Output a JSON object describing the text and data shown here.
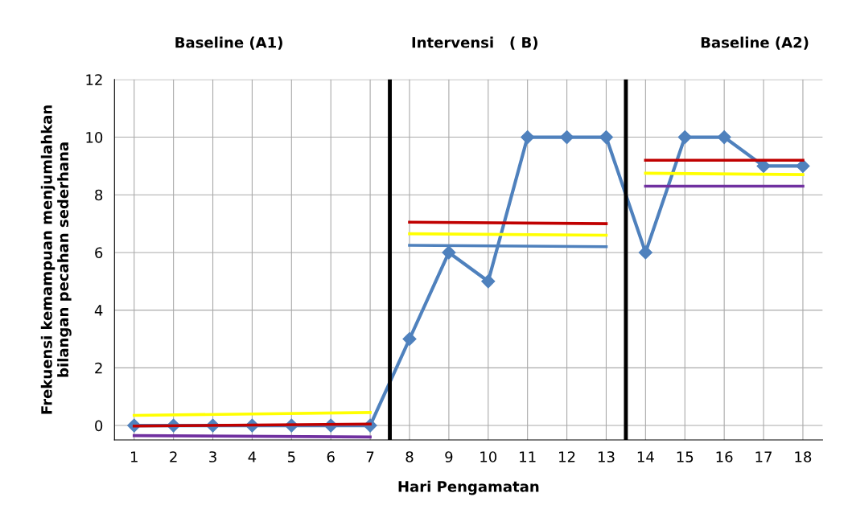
{
  "chart_data": {
    "type": "line",
    "xlabel": "Hari Pengamatan",
    "ylabel": "Frekuensi kemampuan menjumlahkan\nbilangan pecahan sederhana",
    "annotations": [
      "Baseline (A1)",
      "Intervensi   ( B)",
      "Baseline (A2)"
    ],
    "x": [
      1,
      2,
      3,
      4,
      5,
      6,
      7,
      8,
      9,
      10,
      11,
      12,
      13,
      14,
      15,
      16,
      17,
      18
    ],
    "series": [
      {
        "color": "#4f81bd",
        "marker": "diamond",
        "values": [
          0,
          0,
          0,
          0,
          0,
          0,
          0,
          3,
          6,
          5,
          10,
          10,
          10,
          6,
          10,
          10,
          9,
          9
        ]
      },
      {
        "color": "#ffff00",
        "marker": "none",
        "x": [
          1,
          7
        ],
        "values": [
          0.35,
          0.45
        ]
      },
      {
        "color": "#c00000",
        "marker": "none",
        "x": [
          1,
          7
        ],
        "values": [
          -0.02,
          0.05
        ]
      },
      {
        "color": "#7030a0",
        "marker": "none",
        "x": [
          1,
          7
        ],
        "values": [
          -0.35,
          -0.4
        ]
      },
      {
        "color": "#c00000",
        "marker": "none",
        "x": [
          8,
          13
        ],
        "values": [
          7.05,
          7.0
        ]
      },
      {
        "color": "#ffff00",
        "marker": "none",
        "x": [
          8,
          13
        ],
        "values": [
          6.65,
          6.6
        ]
      },
      {
        "color": "#4f81bd",
        "marker": "none",
        "x": [
          8,
          13
        ],
        "values": [
          6.25,
          6.2
        ]
      },
      {
        "color": "#c00000",
        "marker": "none",
        "x": [
          14,
          18
        ],
        "values": [
          9.2,
          9.2
        ]
      },
      {
        "color": "#ffff00",
        "marker": "none",
        "x": [
          14,
          18
        ],
        "values": [
          8.75,
          8.7
        ]
      },
      {
        "color": "#7030a0",
        "marker": "none",
        "x": [
          14,
          18
        ],
        "values": [
          8.3,
          8.3
        ]
      }
    ],
    "ref_lines": [
      {
        "axis": "x",
        "value": 7.5,
        "color": "#000000"
      },
      {
        "axis": "x",
        "value": 13.5,
        "color": "#000000"
      }
    ],
    "xlim": [
      0.5,
      18.5
    ],
    "xticks": [
      1,
      2,
      3,
      4,
      5,
      6,
      7,
      8,
      9,
      10,
      11,
      12,
      13,
      14,
      15,
      16,
      17,
      18
    ],
    "ylim": [
      -0.5,
      12
    ],
    "yticks": [
      0,
      2,
      4,
      6,
      8,
      10,
      12
    ],
    "grid": true,
    "legend": false
  }
}
